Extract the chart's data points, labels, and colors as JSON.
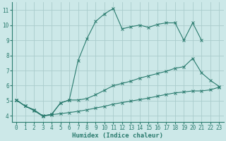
{
  "xlabel": "Humidex (Indice chaleur)",
  "background_color": "#cce8e8",
  "grid_color": "#aacccc",
  "line_color": "#2a7b6e",
  "xlim": [
    -0.5,
    23.5
  ],
  "ylim": [
    3.6,
    11.5
  ],
  "xticks": [
    0,
    1,
    2,
    3,
    4,
    5,
    6,
    7,
    8,
    9,
    10,
    11,
    12,
    13,
    14,
    15,
    16,
    17,
    18,
    19,
    20,
    21,
    22,
    23
  ],
  "yticks": [
    4,
    5,
    6,
    7,
    8,
    9,
    10,
    11
  ],
  "curve1_x": [
    0,
    1,
    2,
    3,
    4,
    5,
    6,
    7,
    8,
    9,
    10,
    11,
    12,
    13,
    14,
    15,
    16,
    17,
    18,
    19,
    20,
    21
  ],
  "curve1_y": [
    5.05,
    4.65,
    4.4,
    4.0,
    4.1,
    4.85,
    5.05,
    7.65,
    9.1,
    10.25,
    10.75,
    11.1,
    9.75,
    9.9,
    10.0,
    9.85,
    10.05,
    10.15,
    10.15,
    9.0,
    10.15,
    9.0
  ],
  "curve2_x": [
    0,
    1,
    2,
    3,
    4,
    5,
    6,
    7,
    8,
    9,
    10,
    11,
    12,
    13,
    14,
    15,
    16,
    17,
    18,
    19,
    20,
    21,
    22,
    23
  ],
  "curve2_y": [
    5.05,
    4.65,
    4.4,
    4.0,
    4.1,
    4.85,
    5.05,
    5.05,
    5.15,
    5.4,
    5.7,
    6.0,
    6.15,
    6.3,
    6.5,
    6.65,
    6.8,
    6.95,
    7.15,
    7.25,
    7.8,
    6.85,
    6.35,
    5.95
  ],
  "curve3_x": [
    0,
    1,
    2,
    3,
    4,
    5,
    6,
    7,
    8,
    9,
    10,
    11,
    12,
    13,
    14,
    15,
    16,
    17,
    18,
    19,
    20,
    21,
    22,
    23
  ],
  "curve3_y": [
    5.05,
    4.65,
    4.35,
    3.98,
    4.08,
    4.15,
    4.22,
    4.3,
    4.4,
    4.52,
    4.63,
    4.78,
    4.88,
    4.98,
    5.08,
    5.18,
    5.3,
    5.42,
    5.52,
    5.58,
    5.65,
    5.65,
    5.72,
    5.9
  ]
}
